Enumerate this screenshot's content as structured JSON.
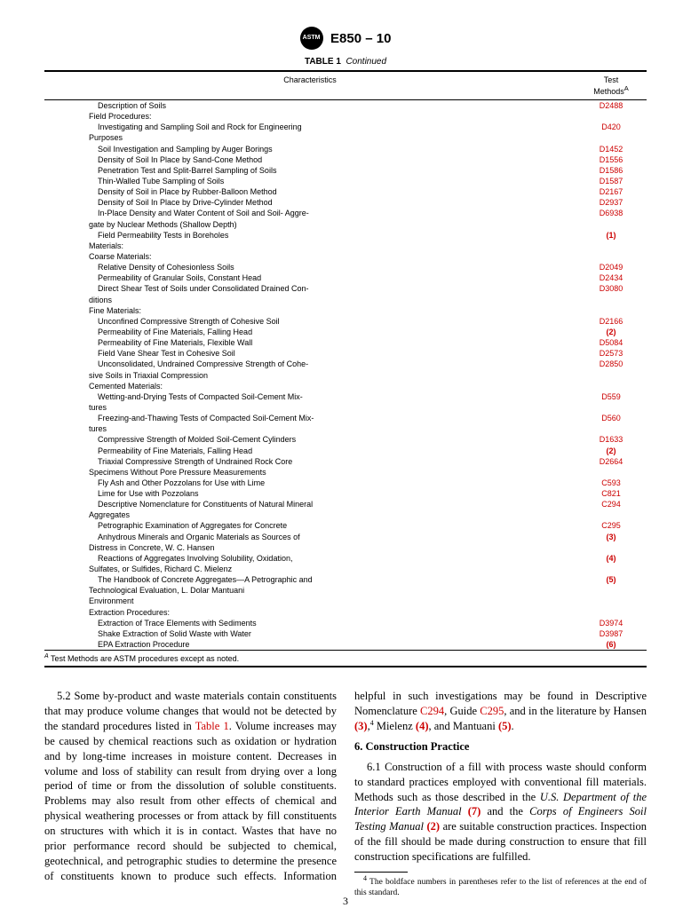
{
  "header": {
    "logo_text": "ASTM",
    "doc_title": "E850 – 10"
  },
  "table": {
    "caption_label": "TABLE 1",
    "caption_cont": "Continued",
    "col_char": "Characteristics",
    "col_method_line1": "Test",
    "col_method_line2": "Methods",
    "col_method_sup": "A",
    "footnote_sup": "A",
    "footnote_text": " Test Methods are ASTM procedures except as noted.",
    "rows": [
      {
        "char": "Description of Soils",
        "method": "D2488",
        "ind": "ind2",
        "link": true
      },
      {
        "char": "Field Procedures:",
        "method": "",
        "ind": "ind1"
      },
      {
        "char": "Investigating and Sampling Soil and Rock for Engineering",
        "method": "D420",
        "ind": "ind2",
        "link": true
      },
      {
        "char": "Purposes",
        "method": "",
        "ind": "ind1"
      },
      {
        "char": "Soil Investigation and Sampling by Auger Borings",
        "method": "D1452",
        "ind": "ind2",
        "link": true
      },
      {
        "char": "Density of Soil In Place by Sand-Cone Method",
        "method": "D1556",
        "ind": "ind2",
        "link": true
      },
      {
        "char": "Penetration Test and Split-Barrel Sampling of Soils",
        "method": "D1586",
        "ind": "ind2",
        "link": true
      },
      {
        "char": "Thin-Walled Tube Sampling of Soils",
        "method": "D1587",
        "ind": "ind2",
        "link": true
      },
      {
        "char": "Density of Soil in Place by Rubber-Balloon Method",
        "method": "D2167",
        "ind": "ind2",
        "link": true
      },
      {
        "char": "Density of Soil In Place by Drive-Cylinder Method",
        "method": "D2937",
        "ind": "ind2",
        "link": true
      },
      {
        "char": "In-Place Density and Water Content of Soil and Soil- Aggre-",
        "method": "D6938",
        "ind": "ind2",
        "link": true
      },
      {
        "char": "gate by Nuclear Methods (Shallow Depth)",
        "method": "",
        "ind": "ind1"
      },
      {
        "char": "Field Permeability Tests in Boreholes",
        "method": "(1)",
        "ind": "ind2",
        "link": true,
        "bold": true
      },
      {
        "char": "Materials:",
        "method": "",
        "ind": "ind1"
      },
      {
        "char": "Coarse Materials:",
        "method": "",
        "ind": "ind1"
      },
      {
        "char": "Relative Density of Cohesionless Soils",
        "method": "D2049",
        "ind": "ind2",
        "link": true
      },
      {
        "char": "Permeability of Granular Soils, Constant Head",
        "method": "D2434",
        "ind": "ind2",
        "link": true
      },
      {
        "char": "Direct Shear Test of Soils under Consolidated Drained Con-",
        "method": "D3080",
        "ind": "ind2",
        "link": true
      },
      {
        "char": "ditions",
        "method": "",
        "ind": "ind1"
      },
      {
        "char": "Fine Materials:",
        "method": "",
        "ind": "ind1"
      },
      {
        "char": "Unconfined Compressive Strength of Cohesive Soil",
        "method": "D2166",
        "ind": "ind2",
        "link": true
      },
      {
        "char": "Permeability of Fine Materials, Falling Head",
        "method": "(2)",
        "ind": "ind2",
        "link": true,
        "bold": true
      },
      {
        "char": "Permeability of Fine Materials, Flexible Wall",
        "method": "D5084",
        "ind": "ind2",
        "link": true
      },
      {
        "char": "Field Vane Shear Test in Cohesive Soil",
        "method": "D2573",
        "ind": "ind2",
        "link": true
      },
      {
        "char": "Unconsolidated, Undrained Compressive Strength of Cohe-",
        "method": "D2850",
        "ind": "ind2",
        "link": true
      },
      {
        "char": "sive Soils in Triaxial Compression",
        "method": "",
        "ind": "ind1"
      },
      {
        "char": "Cemented Materials:",
        "method": "",
        "ind": "ind1"
      },
      {
        "char": "Wetting-and-Drying Tests of Compacted Soil-Cement Mix-",
        "method": "D559",
        "ind": "ind2",
        "link": true
      },
      {
        "char": "tures",
        "method": "",
        "ind": "ind1"
      },
      {
        "char": "Freezing-and-Thawing Tests of Compacted Soil-Cement Mix-",
        "method": "D560",
        "ind": "ind2",
        "link": true
      },
      {
        "char": "tures",
        "method": "",
        "ind": "ind1"
      },
      {
        "char": "Compressive Strength of Molded Soil-Cement Cylinders",
        "method": "D1633",
        "ind": "ind2",
        "link": true
      },
      {
        "char": "Permeability of Fine Materials, Falling Head",
        "method": "(2)",
        "ind": "ind2",
        "link": true,
        "bold": true
      },
      {
        "char": "Triaxial Compressive Strength of Undrained Rock Core",
        "method": "D2664",
        "ind": "ind2",
        "link": true
      },
      {
        "char": "Specimens Without Pore Pressure Measurements",
        "method": "",
        "ind": "ind1"
      },
      {
        "char": "Fly Ash and Other Pozzolans for Use with Lime",
        "method": "C593",
        "ind": "ind2",
        "link": true
      },
      {
        "char": "Lime for Use with Pozzolans",
        "method": "C821",
        "ind": "ind2",
        "link": true
      },
      {
        "char": "Descriptive Nomenclature for Constituents of Natural Mineral",
        "method": "C294",
        "ind": "ind2",
        "link": true
      },
      {
        "char": "Aggregates",
        "method": "",
        "ind": "ind1"
      },
      {
        "char": "Petrographic Examination of Aggregates for Concrete",
        "method": "C295",
        "ind": "ind2",
        "link": true
      },
      {
        "char": "Anhydrous Minerals and Organic Materials as Sources of",
        "method": "(3)",
        "ind": "ind2",
        "link": true,
        "bold": true
      },
      {
        "char": "Distress in Concrete, W. C. Hansen",
        "method": "",
        "ind": "ind1"
      },
      {
        "char": "Reactions of Aggregates Involving Solubility, Oxidation,",
        "method": "(4)",
        "ind": "ind2",
        "link": true,
        "bold": true
      },
      {
        "char": "Sulfates, or Sulfides, Richard C. Mielenz",
        "method": "",
        "ind": "ind1"
      },
      {
        "char": "The Handbook of Concrete Aggregates—A Petrographic and",
        "method": "(5)",
        "ind": "ind2",
        "link": true,
        "bold": true
      },
      {
        "char": "Technological Evaluation, L. Dolar Mantuani",
        "method": "",
        "ind": "ind1"
      },
      {
        "char": "Environment",
        "method": "",
        "ind": "ind1"
      },
      {
        "char": "Extraction Procedures:",
        "method": "",
        "ind": "ind1"
      },
      {
        "char": "Extraction of Trace Elements with Sediments",
        "method": "D3974",
        "ind": "ind2",
        "link": true
      },
      {
        "char": "Shake Extraction of Solid Waste with Water",
        "method": "D3987",
        "ind": "ind2",
        "link": true
      },
      {
        "char": "EPA Extraction Procedure",
        "method": "(6)",
        "ind": "ind2",
        "link": true,
        "bold": true
      }
    ]
  },
  "body": {
    "p1_pre": "5.2 Some by-product and waste materials contain constituents that may produce volume changes that would not be detected by the standard procedures listed in ",
    "p1_table_ref": "Table 1",
    "p1_post": ". Volume increases may be caused by chemical reactions such as oxidation or hydration and by long-time increases in moisture content. Decreases in volume and loss of stability can result from drying over a long period of time or from the dissolution of soluble constituents. Problems may also result from other effects of chemical and physical weathering processes or from attack by fill constituents on structures with which it is in contact. Wastes that have no prior performance record should be subjected to chemical, geotechnical, and petrographic studies to determine the presence of constituents known to produce such effects. Information helpful in such investigations may be found in Descriptive Nomenclature ",
    "p1_c294": "C294",
    "p1_mid2": ", Guide ",
    "p1_c295": "C295",
    "p1_mid3": ", and in the literature by Hansen ",
    "p1_r3": "(3)",
    "p1_fn4": "4",
    "p1_mid4": " Mielenz ",
    "p1_r4": "(4)",
    "p1_mid5": ", and Mantuani ",
    "p1_r5": "(5)",
    "p1_end": ".",
    "sec6": "6.  Construction Practice",
    "p2_pre": "6.1 Construction of a fill with process waste should conform to standard practices employed with conventional fill materials. Methods such as those described in the ",
    "p2_it1": "U.S. Department of the Interior Earth Manual",
    "p2_mid1": " ",
    "p2_r7": "(7)",
    "p2_mid2": " and the ",
    "p2_it2": "Corps of Engineers Soil Testing Manual",
    "p2_mid3": " ",
    "p2_r2": "(2)",
    "p2_end": " are suitable construction practices. Inspection of the fill should be made during construction to ensure that fill construction specifications are fulfilled.",
    "fn4_sup": "4",
    "fn4_text": " The boldface numbers in parentheses refer to the list of references at the end of this standard."
  },
  "page_number": "3"
}
